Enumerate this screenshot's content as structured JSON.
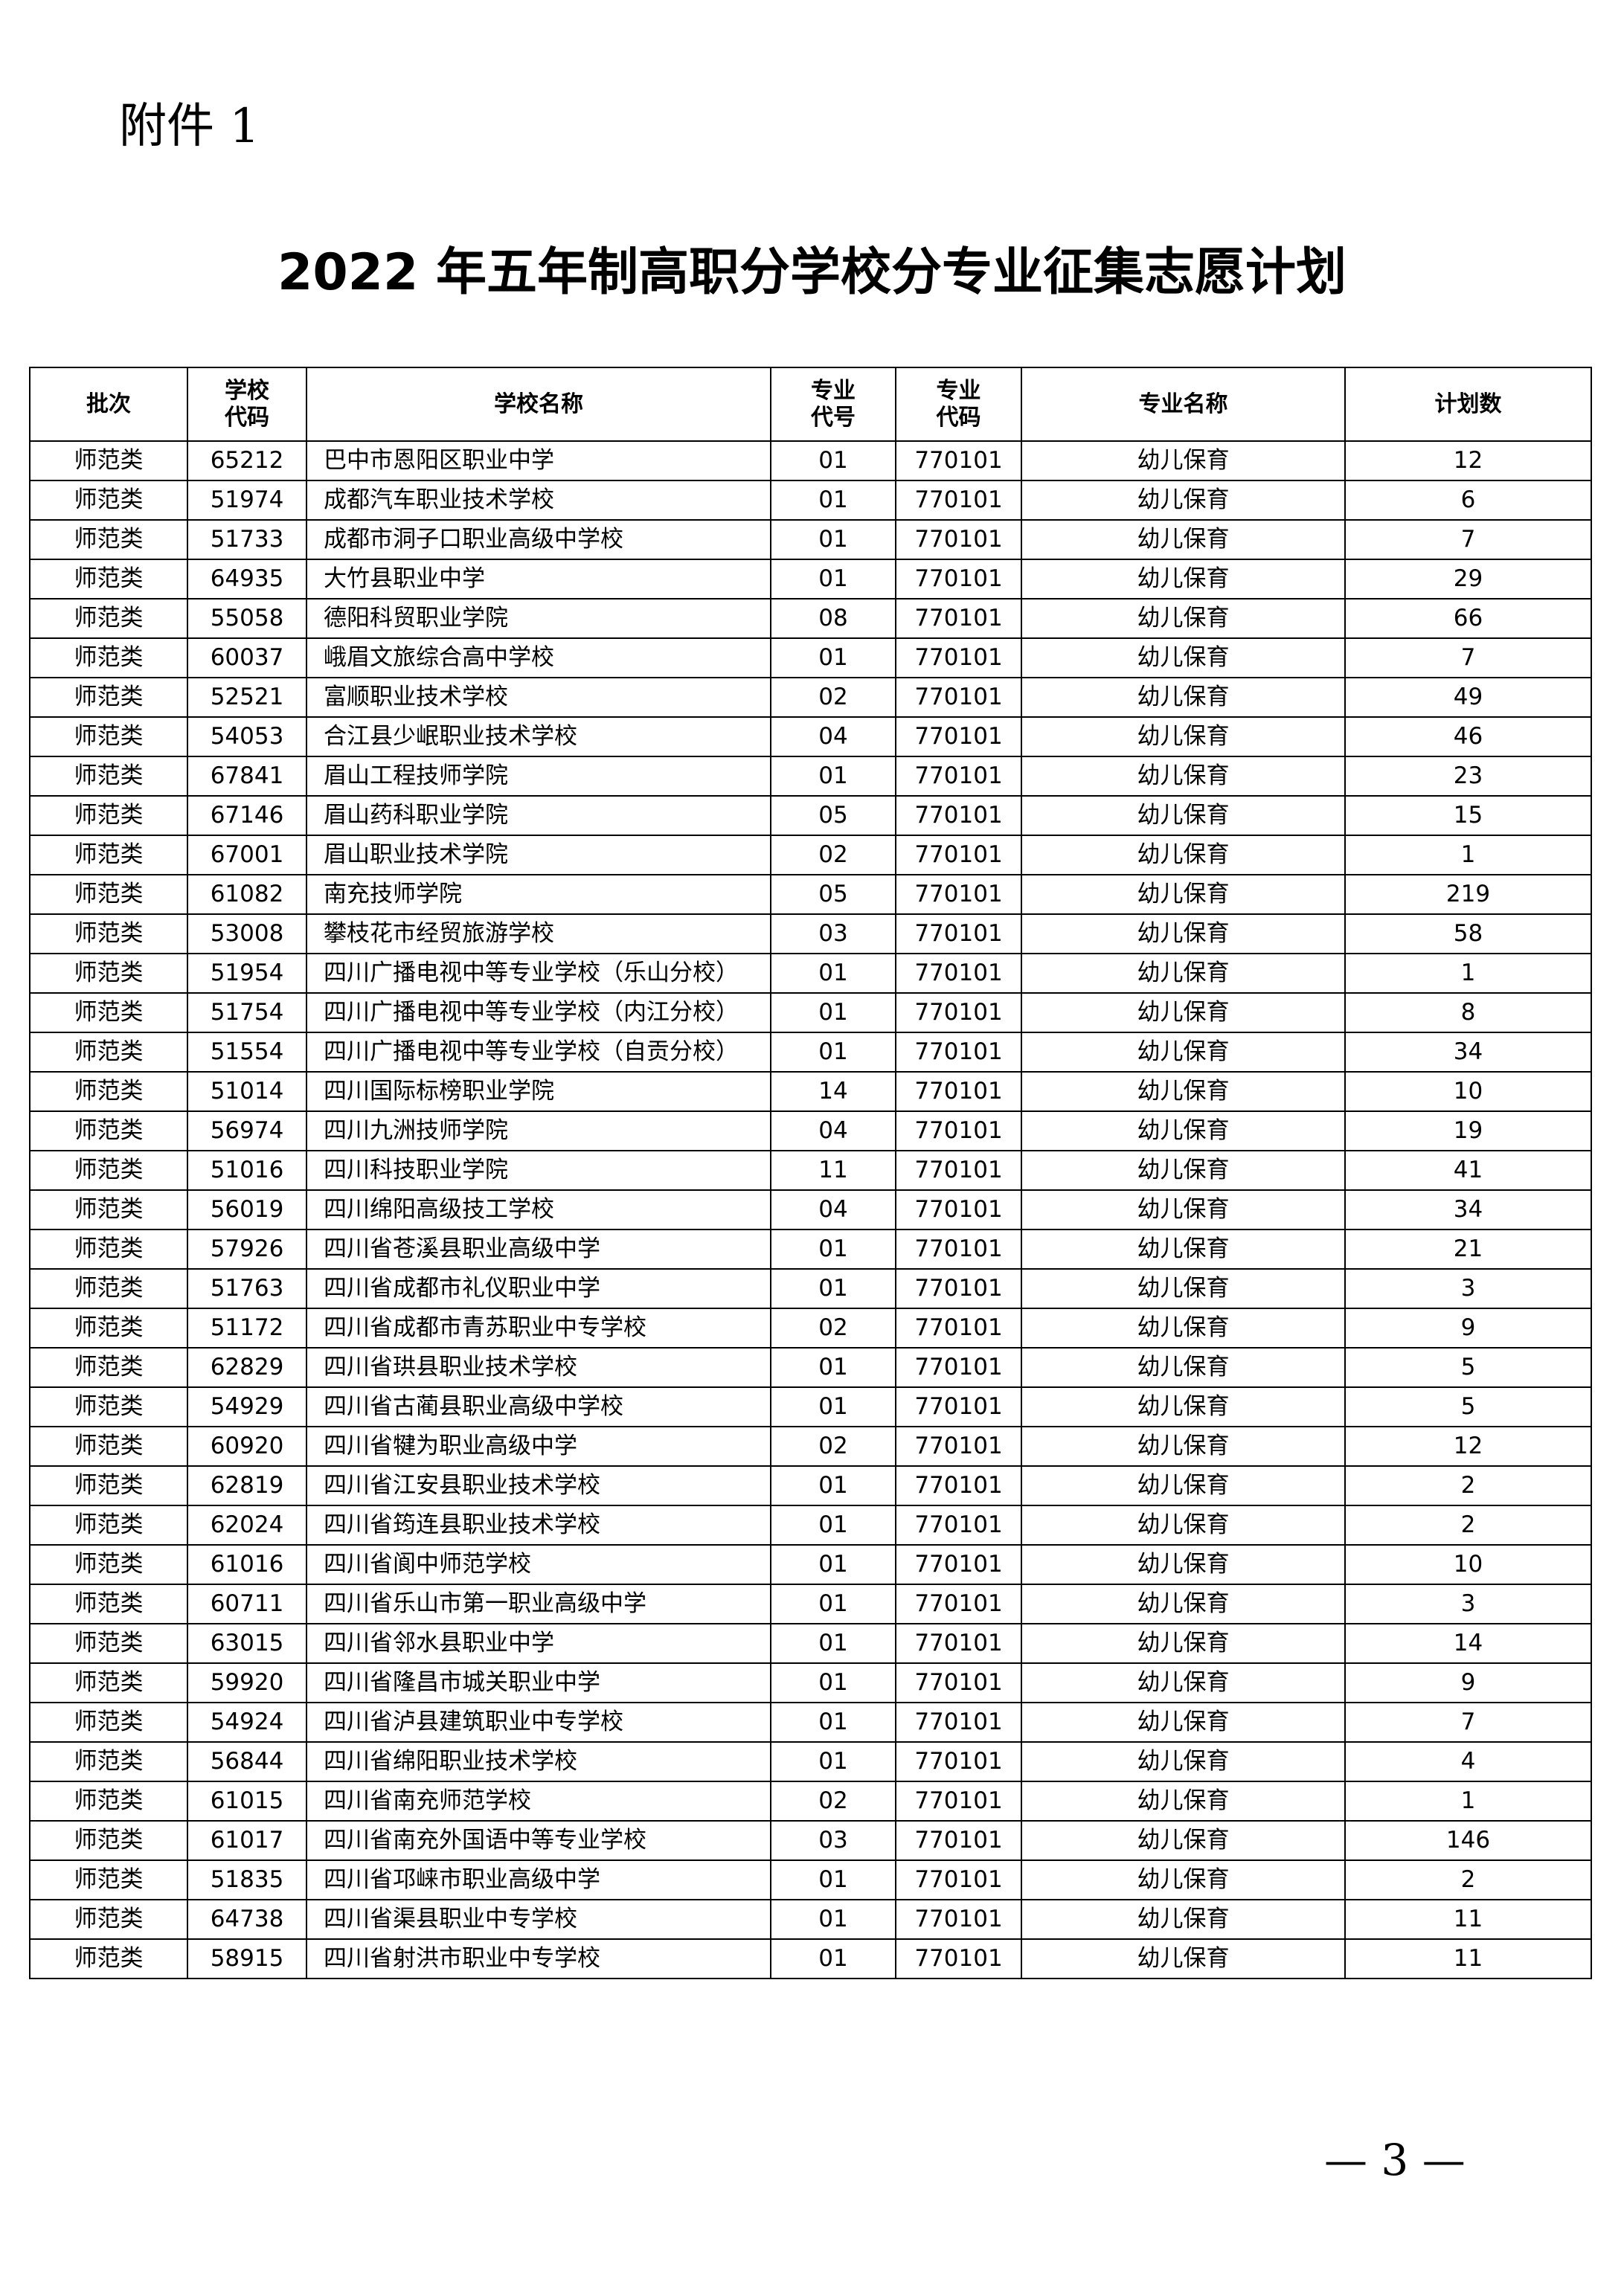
{
  "header": {
    "attachment": "附件 1",
    "title": "2022 年五年制高职分学校分专业征集志愿计划"
  },
  "table": {
    "columns": [
      "批次",
      "学校\n代码",
      "学校名称",
      "专业\n代号",
      "专业\n代码",
      "专业名称",
      "计划数"
    ],
    "rows": [
      [
        "师范类",
        "65212",
        "巴中市恩阳区职业中学",
        "01",
        "770101",
        "幼儿保育",
        "12"
      ],
      [
        "师范类",
        "51974",
        "成都汽车职业技术学校",
        "01",
        "770101",
        "幼儿保育",
        "6"
      ],
      [
        "师范类",
        "51733",
        "成都市洞子口职业高级中学校",
        "01",
        "770101",
        "幼儿保育",
        "7"
      ],
      [
        "师范类",
        "64935",
        "大竹县职业中学",
        "01",
        "770101",
        "幼儿保育",
        "29"
      ],
      [
        "师范类",
        "55058",
        "德阳科贸职业学院",
        "08",
        "770101",
        "幼儿保育",
        "66"
      ],
      [
        "师范类",
        "60037",
        "峨眉文旅综合高中学校",
        "01",
        "770101",
        "幼儿保育",
        "7"
      ],
      [
        "师范类",
        "52521",
        "富顺职业技术学校",
        "02",
        "770101",
        "幼儿保育",
        "49"
      ],
      [
        "师范类",
        "54053",
        "合江县少岷职业技术学校",
        "04",
        "770101",
        "幼儿保育",
        "46"
      ],
      [
        "师范类",
        "67841",
        "眉山工程技师学院",
        "01",
        "770101",
        "幼儿保育",
        "23"
      ],
      [
        "师范类",
        "67146",
        "眉山药科职业学院",
        "05",
        "770101",
        "幼儿保育",
        "15"
      ],
      [
        "师范类",
        "67001",
        "眉山职业技术学院",
        "02",
        "770101",
        "幼儿保育",
        "1"
      ],
      [
        "师范类",
        "61082",
        "南充技师学院",
        "05",
        "770101",
        "幼儿保育",
        "219"
      ],
      [
        "师范类",
        "53008",
        "攀枝花市经贸旅游学校",
        "03",
        "770101",
        "幼儿保育",
        "58"
      ],
      [
        "师范类",
        "51954",
        "四川广播电视中等专业学校（乐山分校）",
        "01",
        "770101",
        "幼儿保育",
        "1"
      ],
      [
        "师范类",
        "51754",
        "四川广播电视中等专业学校（内江分校）",
        "01",
        "770101",
        "幼儿保育",
        "8"
      ],
      [
        "师范类",
        "51554",
        "四川广播电视中等专业学校（自贡分校）",
        "01",
        "770101",
        "幼儿保育",
        "34"
      ],
      [
        "师范类",
        "51014",
        "四川国际标榜职业学院",
        "14",
        "770101",
        "幼儿保育",
        "10"
      ],
      [
        "师范类",
        "56974",
        "四川九洲技师学院",
        "04",
        "770101",
        "幼儿保育",
        "19"
      ],
      [
        "师范类",
        "51016",
        "四川科技职业学院",
        "11",
        "770101",
        "幼儿保育",
        "41"
      ],
      [
        "师范类",
        "56019",
        "四川绵阳高级技工学校",
        "04",
        "770101",
        "幼儿保育",
        "34"
      ],
      [
        "师范类",
        "57926",
        "四川省苍溪县职业高级中学",
        "01",
        "770101",
        "幼儿保育",
        "21"
      ],
      [
        "师范类",
        "51763",
        "四川省成都市礼仪职业中学",
        "01",
        "770101",
        "幼儿保育",
        "3"
      ],
      [
        "师范类",
        "51172",
        "四川省成都市青苏职业中专学校",
        "02",
        "770101",
        "幼儿保育",
        "9"
      ],
      [
        "师范类",
        "62829",
        "四川省珙县职业技术学校",
        "01",
        "770101",
        "幼儿保育",
        "5"
      ],
      [
        "师范类",
        "54929",
        "四川省古蔺县职业高级中学校",
        "01",
        "770101",
        "幼儿保育",
        "5"
      ],
      [
        "师范类",
        "60920",
        "四川省犍为职业高级中学",
        "02",
        "770101",
        "幼儿保育",
        "12"
      ],
      [
        "师范类",
        "62819",
        "四川省江安县职业技术学校",
        "01",
        "770101",
        "幼儿保育",
        "2"
      ],
      [
        "师范类",
        "62024",
        "四川省筠连县职业技术学校",
        "01",
        "770101",
        "幼儿保育",
        "2"
      ],
      [
        "师范类",
        "61016",
        "四川省阆中师范学校",
        "01",
        "770101",
        "幼儿保育",
        "10"
      ],
      [
        "师范类",
        "60711",
        "四川省乐山市第一职业高级中学",
        "01",
        "770101",
        "幼儿保育",
        "3"
      ],
      [
        "师范类",
        "63015",
        "四川省邻水县职业中学",
        "01",
        "770101",
        "幼儿保育",
        "14"
      ],
      [
        "师范类",
        "59920",
        "四川省隆昌市城关职业中学",
        "01",
        "770101",
        "幼儿保育",
        "9"
      ],
      [
        "师范类",
        "54924",
        "四川省泸县建筑职业中专学校",
        "01",
        "770101",
        "幼儿保育",
        "7"
      ],
      [
        "师范类",
        "56844",
        "四川省绵阳职业技术学校",
        "01",
        "770101",
        "幼儿保育",
        "4"
      ],
      [
        "师范类",
        "61015",
        "四川省南充师范学校",
        "02",
        "770101",
        "幼儿保育",
        "1"
      ],
      [
        "师范类",
        "61017",
        "四川省南充外国语中等专业学校",
        "03",
        "770101",
        "幼儿保育",
        "146"
      ],
      [
        "师范类",
        "51835",
        "四川省邛崃市职业高级中学",
        "01",
        "770101",
        "幼儿保育",
        "2"
      ],
      [
        "师范类",
        "64738",
        "四川省渠县职业中专学校",
        "01",
        "770101",
        "幼儿保育",
        "11"
      ],
      [
        "师范类",
        "58915",
        "四川省射洪市职业中专学校",
        "01",
        "770101",
        "幼儿保育",
        "11"
      ]
    ]
  },
  "footer": {
    "page_number": "— 3 —"
  }
}
